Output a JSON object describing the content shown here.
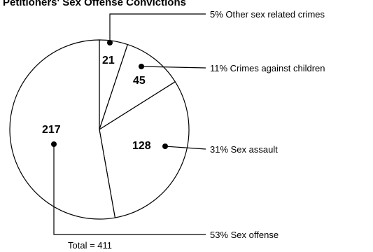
{
  "chart_data": {
    "type": "pie",
    "title": "Petitioners' Sex Offense Convictions",
    "total_label": "Total = 411",
    "total": 411,
    "slices": [
      {
        "count": 21,
        "count_label": "21",
        "percent": 5,
        "legend": "5% Other sex related crimes"
      },
      {
        "count": 45,
        "count_label": "45",
        "percent": 11,
        "legend": "11% Crimes against children"
      },
      {
        "count": 128,
        "count_label": "128",
        "percent": 31,
        "legend": "31% Sex assault"
      },
      {
        "count": 217,
        "count_label": "217",
        "percent": 53,
        "legend": "53% Sex offense"
      }
    ]
  }
}
